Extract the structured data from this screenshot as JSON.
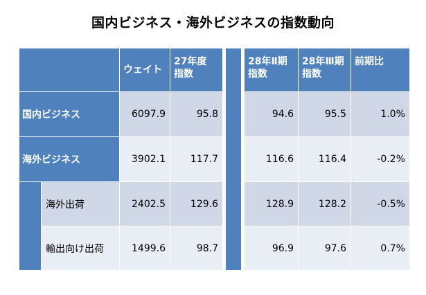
{
  "title": "国内ビジネス・海外ビジネスの指数動向",
  "headers": {
    "weight": "ウェイト",
    "fy27": "27年度\n指数",
    "q2": "28年Ⅱ期\n指数",
    "q3": "28年Ⅲ期\n指数",
    "qoq": "前期比"
  },
  "rows": [
    {
      "label": "国内ビジネス",
      "weight": "6097.9",
      "fy27": "95.8",
      "q2": "94.6",
      "q3": "95.5",
      "qoq": "1.0%"
    },
    {
      "label": "海外ビジネス",
      "weight": "3902.1",
      "fy27": "117.7",
      "q2": "116.6",
      "q3": "116.4",
      "qoq": "-0.2%"
    },
    {
      "label": "海外出荷",
      "weight": "2402.5",
      "fy27": "129.6",
      "q2": "128.9",
      "q3": "128.2",
      "qoq": "-0.5%"
    },
    {
      "label": "輸出向け出荷",
      "weight": "1499.6",
      "fy27": "98.7",
      "q2": "96.9",
      "q3": "97.6",
      "qoq": "0.7%"
    }
  ],
  "colors": {
    "header_blue": "#4f81bd",
    "band_dark": "#d0d8e8",
    "band_light": "#e9edf4"
  }
}
